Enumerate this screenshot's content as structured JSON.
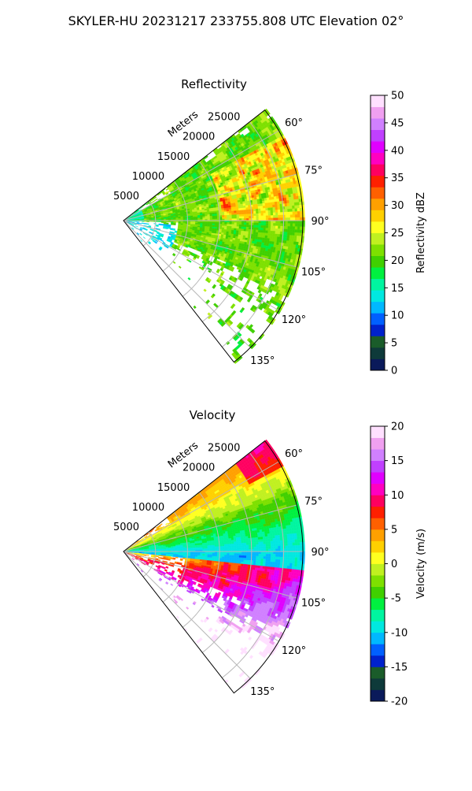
{
  "title": "SKYLER-HU  20231217  233755.808 UTC Elevation 02°",
  "chart_data": [
    {
      "type": "heatmap",
      "title": "Reflectivity",
      "projection": "polar-sector",
      "radius_label": "Meters",
      "radial_ticks": [
        5000,
        10000,
        15000,
        20000,
        25000
      ],
      "radial_tick_labels": [
        "5000",
        "10000",
        "15000",
        "20000",
        "25000"
      ],
      "radial_max": 28000,
      "azimuth_range": [
        52,
        142
      ],
      "azimuth_ticks": [
        60,
        75,
        90,
        105,
        120,
        135
      ],
      "azimuth_tick_labels": [
        "60°",
        "75°",
        "90°",
        "105°",
        "120°",
        "135°"
      ],
      "grid": true,
      "colorbar": {
        "label": "Reflectivity dBZ",
        "range": [
          0,
          50
        ],
        "ticks": [
          0,
          5,
          10,
          15,
          20,
          25,
          30,
          35,
          40,
          45,
          50
        ],
        "colors": [
          "#0a1a5a",
          "#0e3a3a",
          "#1a5c2a",
          "#0022cc",
          "#0060ff",
          "#00b8ff",
          "#00e8e0",
          "#00f5a0",
          "#00f040",
          "#40d000",
          "#7ee000",
          "#c0f020",
          "#ffff20",
          "#ffd000",
          "#ffa000",
          "#ff6000",
          "#ff2000",
          "#ff0060",
          "#ff00c0",
          "#e000ff",
          "#c040ff",
          "#d080ff",
          "#f0a0f0",
          "#ffe0ff"
        ],
        "position": "right"
      }
    },
    {
      "type": "heatmap",
      "title": "Velocity",
      "projection": "polar-sector",
      "radius_label": "Meters",
      "radial_ticks": [
        5000,
        10000,
        15000,
        20000,
        25000
      ],
      "radial_tick_labels": [
        "5000",
        "10000",
        "15000",
        "20000",
        "25000"
      ],
      "radial_max": 28000,
      "azimuth_range": [
        52,
        142
      ],
      "azimuth_ticks": [
        60,
        75,
        90,
        105,
        120,
        135
      ],
      "azimuth_tick_labels": [
        "60°",
        "75°",
        "90°",
        "105°",
        "120°",
        "135°"
      ],
      "grid": true,
      "colorbar": {
        "label": "Velocity (m/s)",
        "range": [
          -20,
          20
        ],
        "ticks": [
          -20,
          -15,
          -10,
          -5,
          0,
          5,
          10,
          15,
          20
        ],
        "colors": [
          "#0a1a5a",
          "#0e3a3a",
          "#1a5c2a",
          "#0022cc",
          "#0060ff",
          "#00b8ff",
          "#00e8e0",
          "#00f5a0",
          "#00f040",
          "#40d000",
          "#7ee000",
          "#c0f020",
          "#ffff20",
          "#ffd000",
          "#ffa000",
          "#ff6000",
          "#ff2000",
          "#ff0060",
          "#ff00c0",
          "#e000ff",
          "#c040ff",
          "#d080ff",
          "#f0a0f0",
          "#ffe0ff"
        ],
        "position": "right"
      }
    }
  ]
}
